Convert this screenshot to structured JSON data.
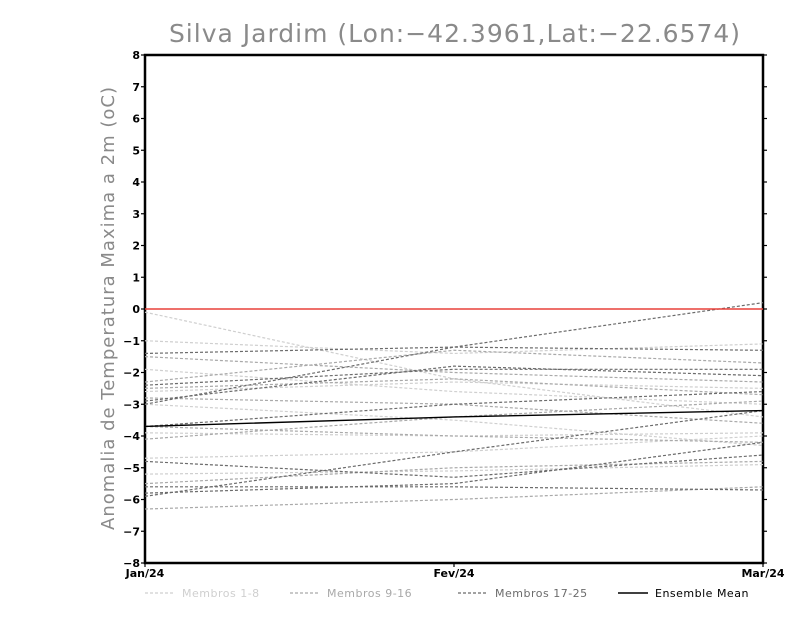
{
  "chart_data": {
    "type": "line",
    "title": "Silva Jardim (Lon:−42.3961,Lat:−22.6574)",
    "ylabel": "Anomalia de Temperatura Maxima a 2m (oC)",
    "xlabel": "",
    "categories": [
      "Jan/24",
      "Fev/24",
      "Mar/24"
    ],
    "ylim": [
      -8,
      8
    ],
    "yticks": [
      8,
      7,
      6,
      5,
      4,
      3,
      2,
      1,
      0,
      -1,
      -2,
      -3,
      -4,
      -5,
      -6,
      -7,
      -8
    ],
    "ytick_labels": [
      "8",
      "7",
      "6",
      "5",
      "4",
      "3",
      "2",
      "1",
      "0",
      "−1",
      "−2",
      "−3",
      "−4",
      "−5",
      "−6",
      "−7",
      "−8"
    ],
    "grid": false,
    "legend_position": "bottom",
    "reference_line": {
      "value": 0,
      "color": "#e8403a"
    },
    "series": [
      {
        "name": "Membros 1-8",
        "color": "#cfcfcf",
        "dashed": true,
        "members": [
          [
            -0.1,
            -2.2,
            -3.4
          ],
          [
            -1.0,
            -1.4,
            -1.1
          ],
          [
            -2.6,
            -2.3,
            -2.5
          ],
          [
            -3.9,
            -4.0,
            -3.9
          ],
          [
            -4.7,
            -4.5,
            -4.0
          ],
          [
            -5.2,
            -5.1,
            -4.9
          ],
          [
            -3.0,
            -3.5,
            -4.3
          ],
          [
            -1.9,
            -2.6,
            -3.0
          ]
        ]
      },
      {
        "name": "Membros 9-16",
        "color": "#a9a9a9",
        "dashed": true,
        "members": [
          [
            -2.3,
            -1.3,
            -1.7
          ],
          [
            -4.1,
            -3.4,
            -2.9
          ],
          [
            -2.5,
            -2.2,
            -2.7
          ],
          [
            -6.3,
            -6.0,
            -5.6
          ],
          [
            -3.7,
            -4.0,
            -4.2
          ],
          [
            -5.5,
            -5.0,
            -4.8
          ],
          [
            -2.8,
            -3.0,
            -3.6
          ],
          [
            -1.5,
            -2.0,
            -2.3
          ]
        ]
      },
      {
        "name": "Membros 17-25",
        "color": "#6b6b6b",
        "dashed": true,
        "members": [
          [
            -1.4,
            -1.2,
            -1.3
          ],
          [
            -2.9,
            -1.8,
            -2.1
          ],
          [
            -5.9,
            -4.5,
            -3.2
          ],
          [
            -3.0,
            -1.2,
            0.2
          ],
          [
            -4.8,
            -5.3,
            -4.6
          ],
          [
            -5.8,
            -5.5,
            -4.2
          ],
          [
            -3.7,
            -3.0,
            -2.6
          ],
          [
            -2.4,
            -1.9,
            -1.9
          ],
          [
            -5.6,
            -5.6,
            -5.7
          ]
        ]
      },
      {
        "name": "Ensemble Mean",
        "color": "#000000",
        "dashed": false,
        "members": [
          [
            -3.7,
            -3.4,
            -3.2
          ]
        ]
      }
    ]
  }
}
